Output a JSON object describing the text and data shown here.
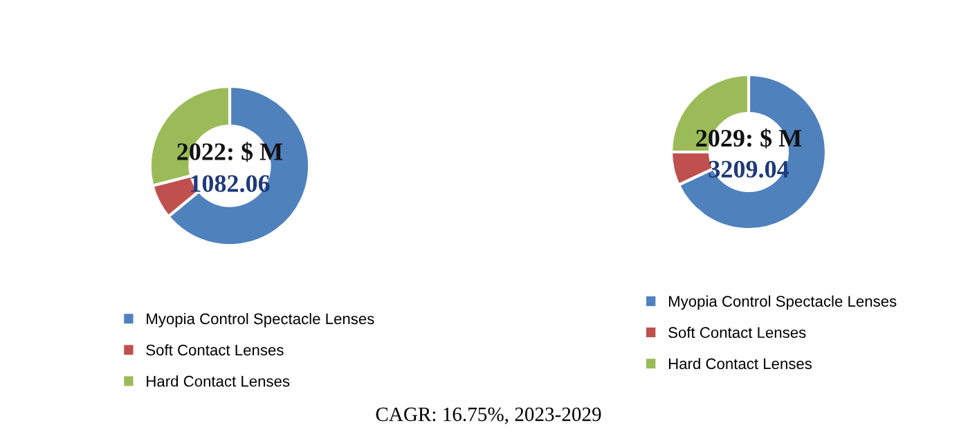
{
  "chart_data": [
    {
      "type": "donut",
      "title": "2022: $ M",
      "annotations": [
        "1082.06",
        "CAGR: 16.75%, 2023-2029"
      ],
      "categories": [
        "Myopia Control Spectacle Lenses",
        "Soft Contact Lenses",
        "Hard Contact Lenses"
      ],
      "values": [
        64,
        7,
        29
      ],
      "colors": [
        "#4f81bd",
        "#c0504d",
        "#9bbb59"
      ],
      "legend": "bottom"
    },
    {
      "type": "donut",
      "title": "2029: $ M",
      "annotations": [
        "3209.04"
      ],
      "categories": [
        "Myopia Control Spectacle Lenses",
        "Soft Contact Lenses",
        "Hard Contact Lenses"
      ],
      "values": [
        68,
        7,
        25
      ],
      "colors": [
        "#4f81bd",
        "#c0504d",
        "#9bbb59"
      ],
      "legend": "bottom"
    }
  ]
}
